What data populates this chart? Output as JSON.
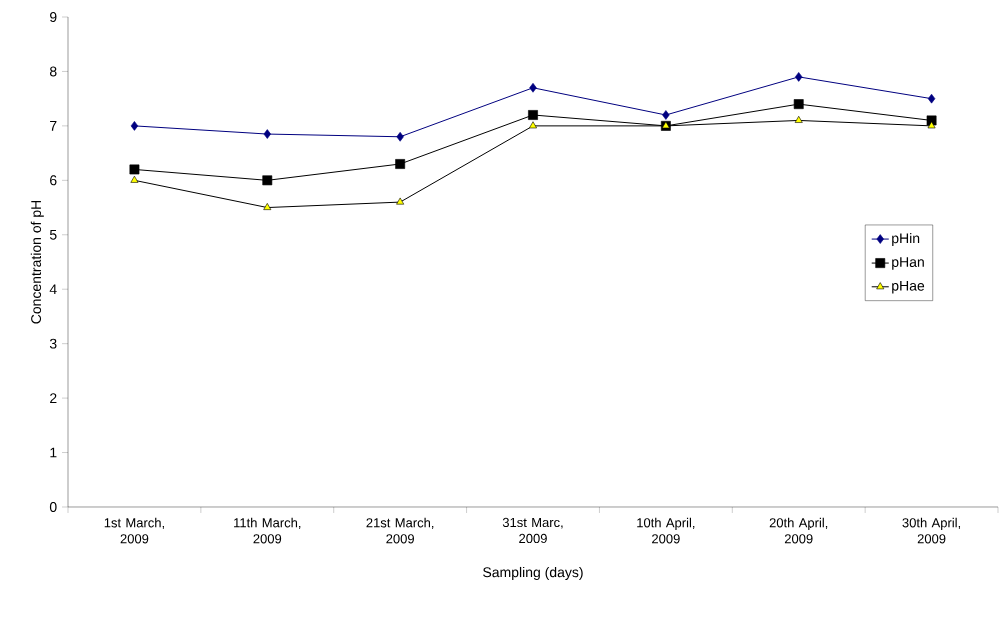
{
  "chart_data": {
    "type": "line",
    "xlabel": "Sampling (days)",
    "ylabel": "Concentration of pH",
    "categories": [
      "1st March, 2009",
      "11th March, 2009",
      "21st March, 2009",
      "31st Marc, 2009",
      "10th April, 2009",
      "20th April, 2009",
      "30th April, 2009"
    ],
    "series": [
      {
        "name": "pHin",
        "color": "#000080",
        "marker": "diamond",
        "values": [
          7.0,
          6.85,
          6.8,
          7.7,
          7.2,
          7.9,
          7.5
        ]
      },
      {
        "name": "pHan",
        "color": "#000000",
        "marker": "square",
        "values": [
          6.2,
          6.0,
          6.3,
          7.2,
          7.0,
          7.4,
          7.1
        ]
      },
      {
        "name": "pHae",
        "color": "#ffff00",
        "marker": "triangle",
        "values": [
          6.0,
          5.5,
          5.6,
          7.0,
          7.0,
          7.1,
          7.0
        ]
      }
    ],
    "ylim": [
      0,
      9
    ],
    "yticks": [
      0,
      1,
      2,
      3,
      4,
      5,
      6,
      7,
      8,
      9
    ],
    "grid": false,
    "legend": "right",
    "line_style": "solid"
  }
}
